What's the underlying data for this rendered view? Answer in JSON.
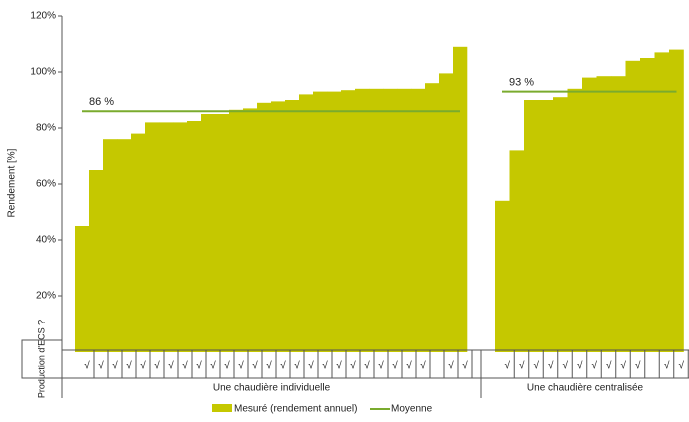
{
  "chart_data": {
    "type": "bar",
    "ylabel": "Rendement [%]",
    "ylim": [
      0,
      120
    ],
    "yticks": [
      {
        "value": 20,
        "label": "20%"
      },
      {
        "value": 40,
        "label": "40%"
      },
      {
        "value": 60,
        "label": "60%"
      },
      {
        "value": 80,
        "label": "80%"
      },
      {
        "value": 100,
        "label": "100%"
      },
      {
        "value": 120,
        "label": "120%"
      }
    ],
    "row_label": "Production d'ECS ?",
    "series": [
      {
        "name": "Mesuré (rendement annuel)",
        "color": "#c5c800"
      },
      {
        "name": "Moyenne",
        "color": "#7aab2e"
      }
    ],
    "groups": [
      {
        "name": "Une chaudière individuelle",
        "values": [
          45,
          65,
          76,
          76,
          78,
          82,
          82,
          82,
          82.5,
          85,
          85,
          86.5,
          87,
          89,
          89.5,
          90,
          92,
          93,
          93,
          93.5,
          94,
          94,
          94,
          94,
          94,
          96,
          99.5,
          109
        ],
        "mean": 86,
        "mean_label": "86 %",
        "checks": [
          "√",
          "√",
          "√",
          "√",
          "√",
          "√",
          "√",
          "√",
          "√",
          "√",
          "√",
          "√",
          "√",
          "√",
          "√",
          "√",
          "√",
          "√",
          "√",
          "√",
          "√",
          "√",
          "√",
          "√",
          "√",
          null,
          "√",
          "√"
        ]
      },
      {
        "name": "Une chaudière centralisée",
        "values": [
          54,
          72,
          90,
          90,
          91,
          94,
          98,
          98.5,
          98.5,
          104,
          105,
          107,
          108
        ],
        "mean": 93,
        "mean_label": "93 %",
        "checks": [
          "√",
          "√",
          "√",
          "√",
          "√",
          "√",
          "√",
          "√",
          "√",
          "√",
          null,
          "√",
          "√"
        ]
      }
    ]
  }
}
